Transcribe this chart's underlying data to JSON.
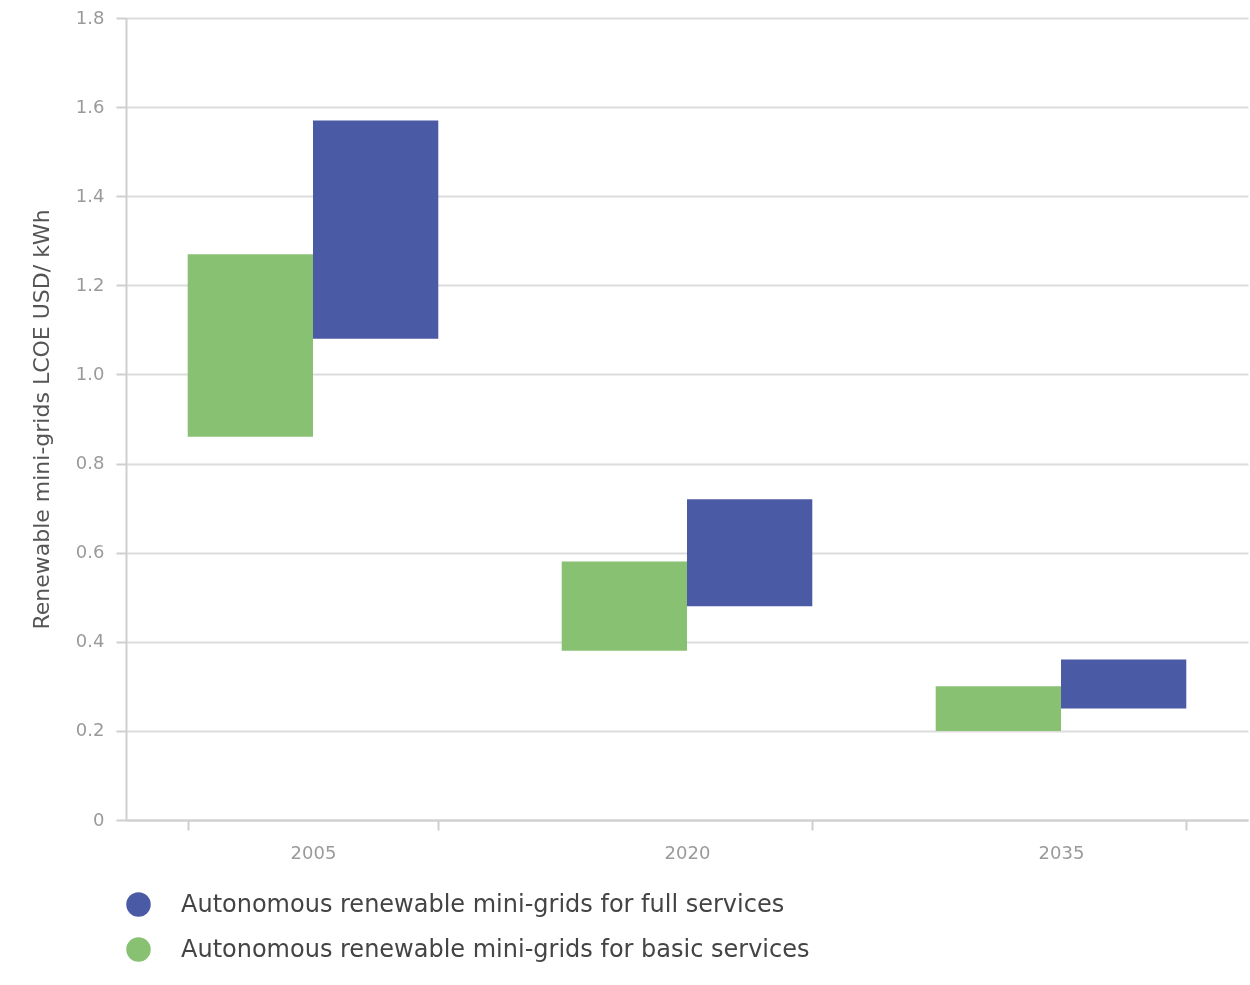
{
  "chart_data": {
    "type": "bar",
    "ylabel": "Renewable mini-grids LCOE USD/ kWh",
    "categories": [
      "2005",
      "2020",
      "2035"
    ],
    "series": [
      {
        "name": "Autonomous renewable mini-grids for full services",
        "color": "#4b5aa5",
        "base": [
          1.08,
          0.48,
          0.25
        ],
        "values": [
          0.49,
          0.24,
          0.11
        ]
      },
      {
        "name": "Autonomous renewable mini-grids for basic services",
        "color": "#88c172",
        "base": [
          0.86,
          0.38,
          0.2
        ],
        "values": [
          0.41,
          0.2,
          0.1
        ]
      }
    ],
    "ylim": [
      0,
      1.8
    ],
    "yticks": [
      0,
      0.2,
      0.4,
      0.6,
      0.8,
      {
        "value": 1,
        "label": "1.0"
      },
      1.2,
      1.4,
      1.6,
      1.8
    ],
    "grid": "y",
    "legend": "bottom"
  }
}
